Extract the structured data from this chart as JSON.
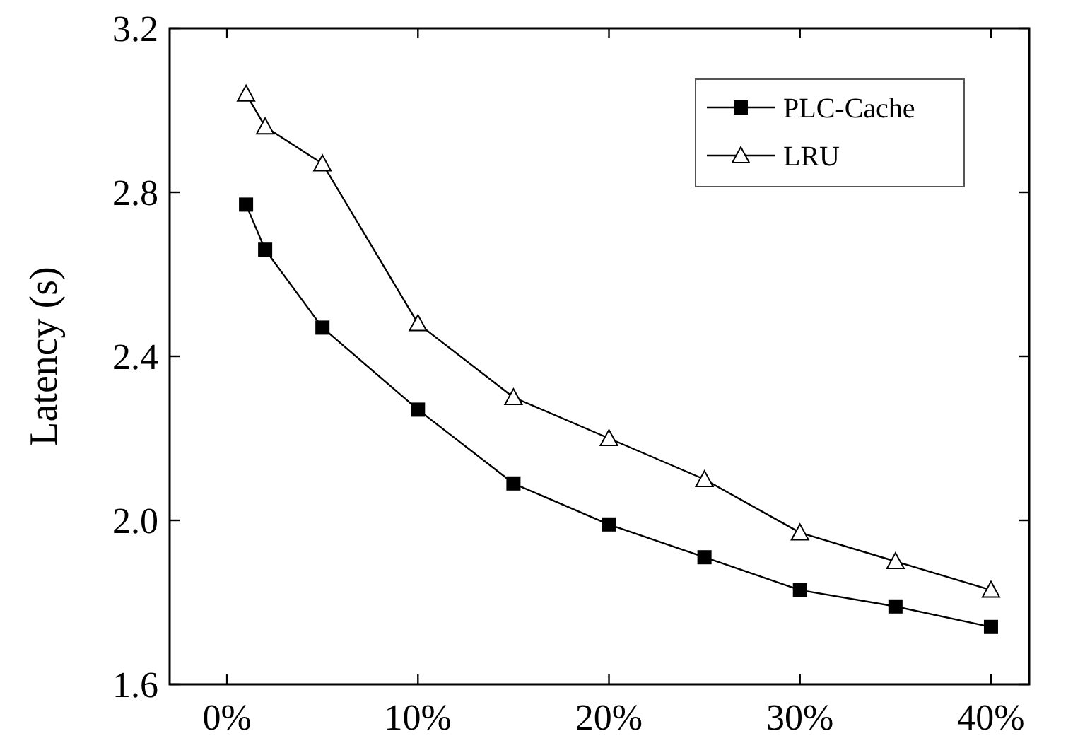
{
  "chart_data": {
    "type": "line",
    "ylabel": "Latency (s)",
    "x": [
      1,
      2,
      5,
      10,
      15,
      20,
      25,
      30,
      35,
      40
    ],
    "series": [
      {
        "name": "PLC-Cache",
        "color": "#000000",
        "marker": "square",
        "values": [
          2.77,
          2.66,
          2.47,
          2.27,
          2.09,
          1.99,
          1.91,
          1.83,
          1.79,
          1.74
        ]
      },
      {
        "name": "LRU",
        "color": "#000000",
        "marker": "triangle",
        "values": [
          3.04,
          2.96,
          2.87,
          2.48,
          2.3,
          2.2,
          2.1,
          1.97,
          1.9,
          1.83
        ]
      }
    ],
    "xlim": [
      -3,
      42
    ],
    "xticks": [
      {
        "value": 0,
        "label": "0%"
      },
      {
        "value": 10,
        "label": "10%"
      },
      {
        "value": 20,
        "label": "20%"
      },
      {
        "value": 30,
        "label": "30%"
      },
      {
        "value": 40,
        "label": "40%"
      }
    ],
    "ylim": [
      1.6,
      3.2
    ],
    "yticks": [
      {
        "value": 1.6,
        "label": "1.6"
      },
      {
        "value": 2.0,
        "label": "2.0"
      },
      {
        "value": 2.4,
        "label": "2.4"
      },
      {
        "value": 2.8,
        "label": "2.8"
      },
      {
        "value": 3.2,
        "label": "3.2"
      }
    ],
    "grid": false,
    "legend": "top right",
    "line_style": "solid"
  }
}
